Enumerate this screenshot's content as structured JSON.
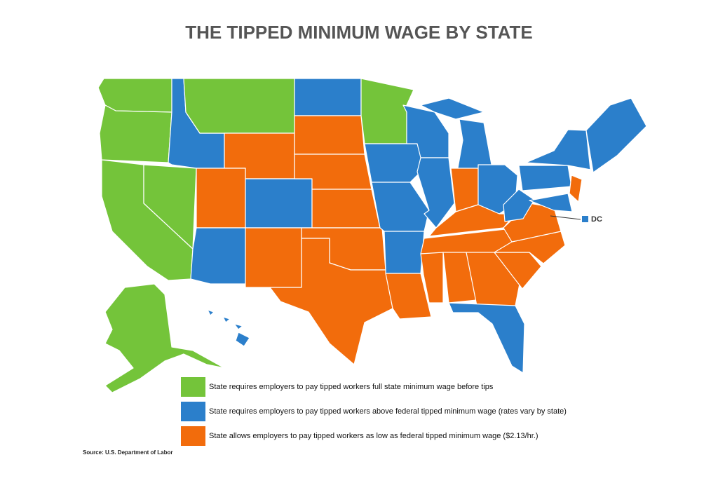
{
  "title": "THE TIPPED MINIMUM WAGE BY STATE",
  "legend": [
    {
      "label": "State requires employers to pay tipped workers full state minimum wage before tips",
      "color": "#74c43a"
    },
    {
      "label": "State requires employers to pay tipped workers above federal tipped minimum wage (rates vary by state)",
      "color": "#2b7fcb"
    },
    {
      "label": "State allows employers to pay tipped workers as low as federal tipped minimum wage ($2.13/hr.)",
      "color": "#f26c0c"
    }
  ],
  "dc_label": "DC",
  "source": "Source: U.S. Department of Labor"
}
